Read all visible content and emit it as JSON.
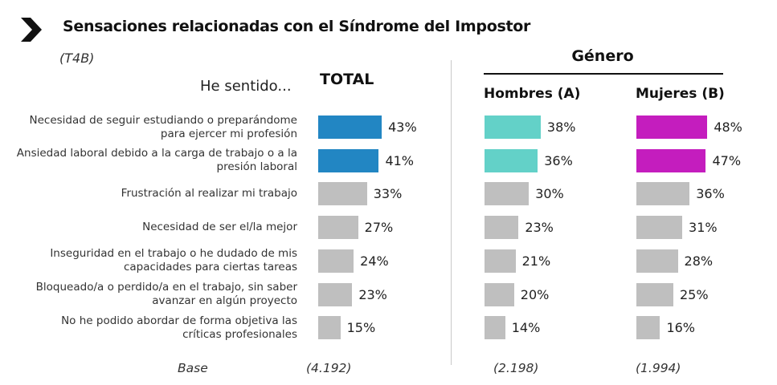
{
  "header": {
    "title": "Sensaciones relacionadas con el Síndrome del Impostor",
    "code": "(T4B)",
    "question": "He sentido...",
    "icon": "chevron-right-icon"
  },
  "columns": {
    "total": "TOTAL",
    "group_title": "Género",
    "hombres": "Hombres (A)",
    "mujeres": "Mujeres (B)"
  },
  "colors": {
    "total_highlight": "#2286C3",
    "hombres_highlight": "#63D1C8",
    "mujeres_highlight": "#C41DBE",
    "neutral": "#BFBFBF"
  },
  "base": {
    "label": "Base",
    "total": "(4.192)",
    "hombres": "(2.198)",
    "mujeres": "(1.994)"
  },
  "chart_data": {
    "type": "bar",
    "orientation": "horizontal",
    "title": "Sensaciones relacionadas con el Síndrome del Impostor",
    "unit": "%",
    "categories": [
      [
        "Necesidad de seguir estudiando o preparándome",
        "para ejercer mi profesión"
      ],
      [
        "Ansiedad laboral debido a la carga de trabajo o a la",
        "presión laboral"
      ],
      [
        "Frustración al realizar mi trabajo"
      ],
      [
        "Necesidad de ser el/la mejor"
      ],
      [
        "Inseguridad en el trabajo o he dudado de mis",
        "capacidades para ciertas tareas"
      ],
      [
        "Bloqueado/a o perdido/a en el trabajo, sin saber",
        "avanzar en algún proyecto"
      ],
      [
        "No he podido abordar de forma objetiva las",
        "críticas profesionales"
      ]
    ],
    "series": [
      {
        "name": "TOTAL",
        "values": [
          43,
          41,
          33,
          27,
          24,
          23,
          15
        ],
        "highlight_count": 2
      },
      {
        "name": "Hombres (A)",
        "values": [
          38,
          36,
          30,
          23,
          21,
          20,
          14
        ],
        "highlight_count": 2
      },
      {
        "name": "Mujeres (B)",
        "values": [
          48,
          47,
          36,
          31,
          28,
          25,
          16
        ],
        "highlight_count": 2
      }
    ],
    "labels": [
      [
        "43%",
        "41%",
        "33%",
        "27%",
        "24%",
        "23%",
        "15%"
      ],
      [
        "38%",
        "36%",
        "30%",
        "23%",
        "21%",
        "20%",
        "14%"
      ],
      [
        "48%",
        "47%",
        "36%",
        "31%",
        "28%",
        "25%",
        "16%"
      ]
    ],
    "xlim": [
      0,
      100
    ],
    "grid": false,
    "legend": "none"
  }
}
